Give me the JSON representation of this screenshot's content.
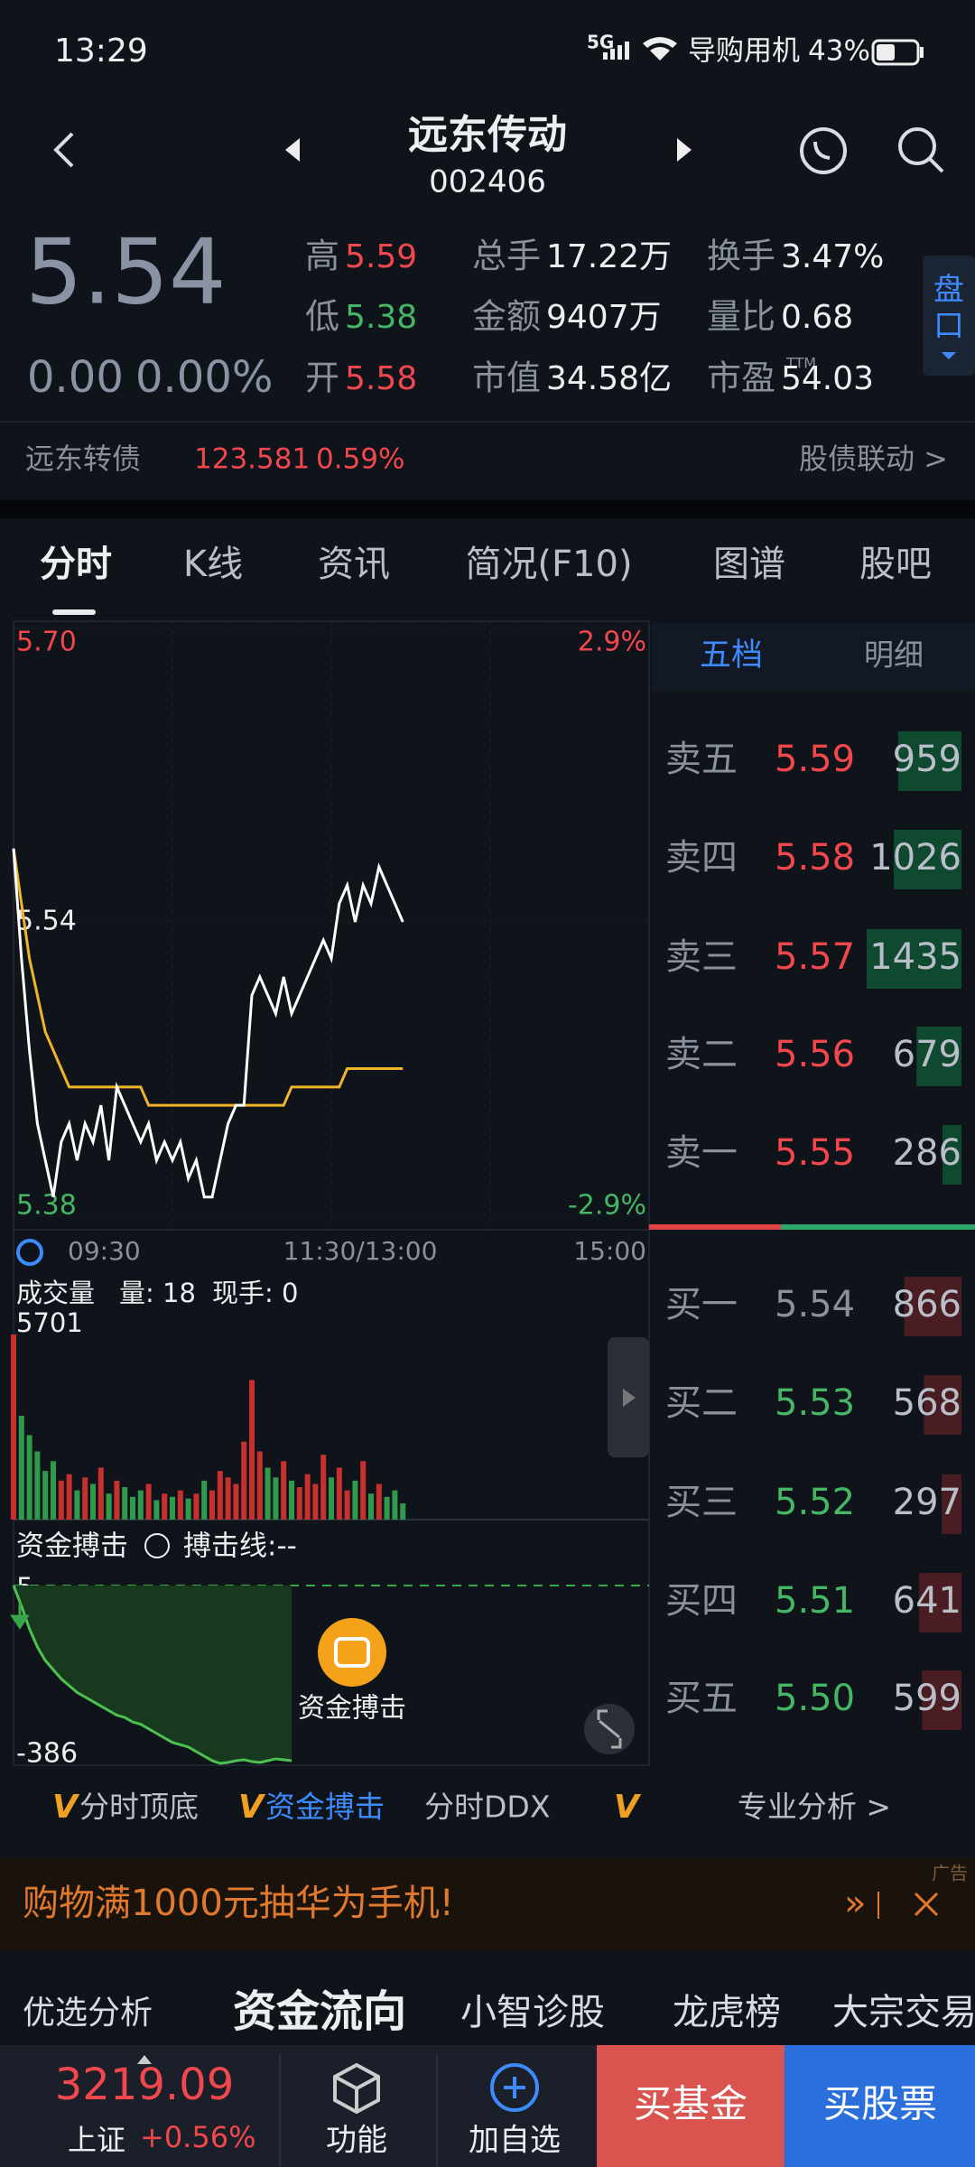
{
  "status_bar": {
    "time": "13:29",
    "network": "5G",
    "carrier": "导购用机",
    "battery": "43%"
  },
  "header": {
    "title": "远东传动",
    "code": "002406"
  },
  "quote": {
    "price": "5.54",
    "change": "0.00",
    "change_pct": "0.00%",
    "side_button": "盘口",
    "stats": [
      {
        "label": "高",
        "value": "5.59",
        "color": "#f2474c"
      },
      {
        "label": "低",
        "value": "5.38",
        "color": "#45b764"
      },
      {
        "label": "开",
        "value": "5.58",
        "color": "#f2474c"
      },
      {
        "label": "总手",
        "value": "17.22万",
        "color": "#eceef2"
      },
      {
        "label": "金额",
        "value": "9407万",
        "color": "#eceef2"
      },
      {
        "label": "市值",
        "value": "34.58亿",
        "color": "#eceef2"
      },
      {
        "label": "换手",
        "value": "3.47%",
        "color": "#eceef2"
      },
      {
        "label": "量比",
        "value": "0.68",
        "color": "#eceef2"
      },
      {
        "label": "市盈",
        "sup": "TTM",
        "value": "54.03",
        "color": "#eceef2"
      }
    ]
  },
  "bond": {
    "name": "远东转债",
    "price": "123.581",
    "change": "0.59%",
    "link": "股债联动 >"
  },
  "tabs": [
    "分时",
    "K线",
    "资讯",
    "简况(F10)",
    "图谱",
    "股吧"
  ],
  "intraday": {
    "ylim": [
      5.38,
      5.7
    ],
    "yticks": [
      {
        "value": 5.7,
        "label": "5.70"
      },
      5.54,
      5.38
    ],
    "y2lim": [
      -2.9,
      2.9
    ],
    "y2ticks": [
      {
        "value": 2.9,
        "label": "2.9%"
      },
      {
        "value": -2.9,
        "label": "-2.9%"
      }
    ],
    "xlabels": [
      "09:30",
      "11:30/13:00",
      "15:00"
    ],
    "price": [
      5.58,
      5.52,
      5.47,
      5.43,
      5.41,
      5.39,
      5.42,
      5.43,
      5.41,
      5.43,
      5.42,
      5.44,
      5.41,
      5.45,
      5.44,
      5.43,
      5.42,
      5.43,
      5.41,
      5.42,
      5.41,
      5.42,
      5.4,
      5.41,
      5.39,
      5.39,
      5.41,
      5.43,
      5.44,
      5.44,
      5.5,
      5.51,
      5.5,
      5.49,
      5.51,
      5.49,
      5.5,
      5.51,
      5.52,
      5.53,
      5.52,
      5.55,
      5.56,
      5.54,
      5.56,
      5.55,
      5.57,
      5.56,
      5.55,
      5.54
    ],
    "avg": [
      5.58,
      5.55,
      5.52,
      5.5,
      5.48,
      5.47,
      5.46,
      5.45,
      5.45,
      5.45,
      5.45,
      5.45,
      5.45,
      5.45,
      5.45,
      5.45,
      5.45,
      5.44,
      5.44,
      5.44,
      5.44,
      5.44,
      5.44,
      5.44,
      5.44,
      5.44,
      5.44,
      5.44,
      5.44,
      5.44,
      5.44,
      5.44,
      5.44,
      5.44,
      5.44,
      5.45,
      5.45,
      5.45,
      5.45,
      5.45,
      5.45,
      5.45,
      5.46,
      5.46,
      5.46,
      5.46,
      5.46,
      5.46,
      5.46,
      5.46
    ]
  },
  "volume": {
    "title": "成交量",
    "info": "量: 18",
    "info2": "现手: 0",
    "ylim": [
      0,
      5701
    ],
    "yticks": [
      5701
    ],
    "values": [
      5701,
      3200,
      2600,
      2100,
      1500,
      1800,
      1200,
      1400,
      900,
      1300,
      1100,
      1600,
      800,
      1200,
      1000,
      700,
      900,
      1100,
      600,
      800,
      700,
      900,
      650,
      800,
      1200,
      900,
      1500,
      1300,
      1100,
      2400,
      4300,
      2100,
      1600,
      1300,
      1800,
      1200,
      1000,
      1400,
      1100,
      2000,
      1300,
      1600,
      900,
      1200,
      1800,
      800,
      1100,
      700,
      900,
      500
    ]
  },
  "flow": {
    "title": "资金搏击",
    "line_label": "搏击线:--",
    "ylim": [
      -386,
      5
    ],
    "yticks": [
      5,
      -386
    ],
    "button": "资金搏击",
    "values": [
      5,
      -40,
      -90,
      -130,
      -160,
      -180,
      -200,
      -215,
      -230,
      -240,
      -250,
      -260,
      -270,
      -280,
      -285,
      -295,
      -300,
      -310,
      -320,
      -330,
      -340,
      -345,
      -350,
      -360,
      -370,
      -380,
      -386,
      -384,
      -380,
      -378,
      -382,
      -384,
      -380,
      -376,
      -378,
      -380
    ]
  },
  "order_book": {
    "tabs": [
      "五档",
      "明细"
    ],
    "asks": [
      {
        "label": "卖五",
        "price": "5.59",
        "volume": 959
      },
      {
        "label": "卖四",
        "price": "5.58",
        "volume": 1026
      },
      {
        "label": "卖三",
        "price": "5.57",
        "volume": 1435
      },
      {
        "label": "卖二",
        "price": "5.56",
        "volume": 679
      },
      {
        "label": "卖一",
        "price": "5.55",
        "volume": 286
      }
    ],
    "bids": [
      {
        "label": "买一",
        "price": "5.54",
        "volume": 866
      },
      {
        "label": "买二",
        "price": "5.53",
        "volume": 568
      },
      {
        "label": "买三",
        "price": "5.52",
        "volume": 297
      },
      {
        "label": "买四",
        "price": "5.51",
        "volume": 641
      },
      {
        "label": "买五",
        "price": "5.50",
        "volume": 599
      }
    ]
  },
  "tools": {
    "items": [
      {
        "prefix": "V",
        "text": "分时顶底"
      },
      {
        "prefix": "V",
        "text": "资金搏击"
      },
      {
        "text": "分时DDX"
      },
      {
        "prefix": "V"
      }
    ],
    "link": "专业分析 >"
  },
  "ad": {
    "text": "购物满1000元抽华为手机!",
    "tag": "广告"
  },
  "nav": [
    "优选分析",
    "资金流向",
    "小智诊股",
    "龙虎榜",
    "大宗交易"
  ],
  "bottom_bar": {
    "index_value": "3219.09",
    "index_name": "上证",
    "index_change": "+0.56%",
    "buttons": [
      "功能",
      "加自选",
      "买基金",
      "买股票"
    ]
  }
}
